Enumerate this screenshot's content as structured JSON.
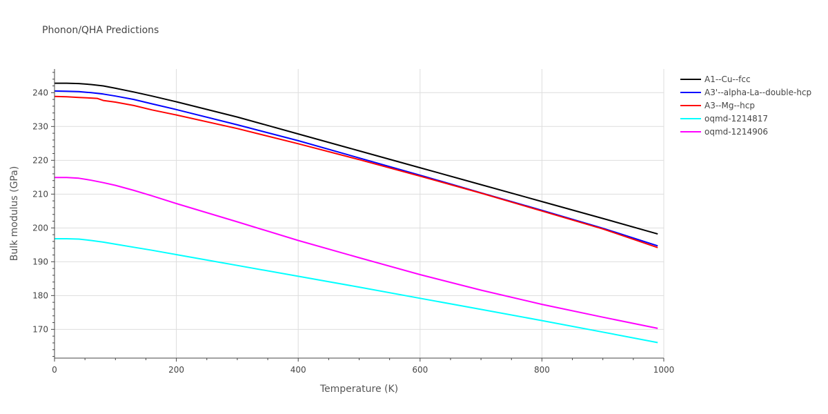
{
  "chart_data": {
    "type": "line",
    "title": "Phonon/QHA Predictions",
    "xlabel": "Temperature (K)",
    "ylabel": "Bulk modulus (GPa)",
    "xlim": [
      0,
      1000
    ],
    "ylim": [
      161.5,
      247
    ],
    "x_ticks": [
      0,
      200,
      400,
      600,
      800,
      1000
    ],
    "y_ticks": [
      170,
      180,
      190,
      200,
      210,
      220,
      230,
      240
    ],
    "grid": true,
    "legend_position": "top-right",
    "series": [
      {
        "name": "A1--Cu--fcc",
        "color": "#000000",
        "x": [
          0,
          20,
          40,
          60,
          80,
          100,
          130,
          160,
          200,
          300,
          400,
          500,
          600,
          700,
          800,
          900,
          990
        ],
        "y": [
          242.8,
          242.8,
          242.7,
          242.4,
          242.0,
          241.3,
          240.2,
          239.0,
          237.3,
          232.8,
          227.8,
          222.8,
          217.8,
          212.8,
          207.8,
          202.8,
          198.2
        ]
      },
      {
        "name": "A3'--alpha-La--double-hcp",
        "color": "#0000ff",
        "x": [
          0,
          20,
          40,
          60,
          80,
          100,
          130,
          160,
          200,
          300,
          400,
          500,
          600,
          700,
          800,
          900,
          990
        ],
        "y": [
          240.5,
          240.4,
          240.3,
          240.0,
          239.6,
          239.0,
          238.0,
          236.7,
          235.0,
          230.5,
          225.8,
          220.7,
          215.6,
          210.4,
          205.2,
          199.9,
          194.7
        ]
      },
      {
        "name": "A3--Mg--hcp",
        "color": "#ff0000",
        "x": [
          0,
          20,
          40,
          60,
          70,
          80,
          100,
          130,
          160,
          200,
          300,
          400,
          500,
          600,
          700,
          800,
          900,
          990
        ],
        "y": [
          238.9,
          238.8,
          238.6,
          238.4,
          238.3,
          237.7,
          237.2,
          236.2,
          234.9,
          233.4,
          229.4,
          224.9,
          220.2,
          215.3,
          210.3,
          205.0,
          199.7,
          194.2
        ]
      },
      {
        "name": "oqmd-1214817",
        "color": "#00ffff",
        "x": [
          0,
          20,
          40,
          60,
          80,
          100,
          130,
          160,
          200,
          300,
          400,
          500,
          600,
          700,
          800,
          900,
          990
        ],
        "y": [
          196.8,
          196.8,
          196.7,
          196.3,
          195.8,
          195.2,
          194.3,
          193.4,
          192.1,
          188.9,
          185.7,
          182.5,
          179.2,
          175.9,
          172.6,
          169.2,
          166.1
        ]
      },
      {
        "name": "oqmd-1214906",
        "color": "#ff00ff",
        "x": [
          0,
          20,
          40,
          60,
          80,
          100,
          130,
          160,
          200,
          300,
          400,
          500,
          600,
          700,
          800,
          900,
          990
        ],
        "y": [
          214.9,
          214.9,
          214.7,
          214.1,
          213.4,
          212.6,
          211.1,
          209.5,
          207.2,
          201.8,
          196.3,
          191.2,
          186.2,
          181.6,
          177.4,
          173.6,
          170.3
        ]
      }
    ]
  }
}
